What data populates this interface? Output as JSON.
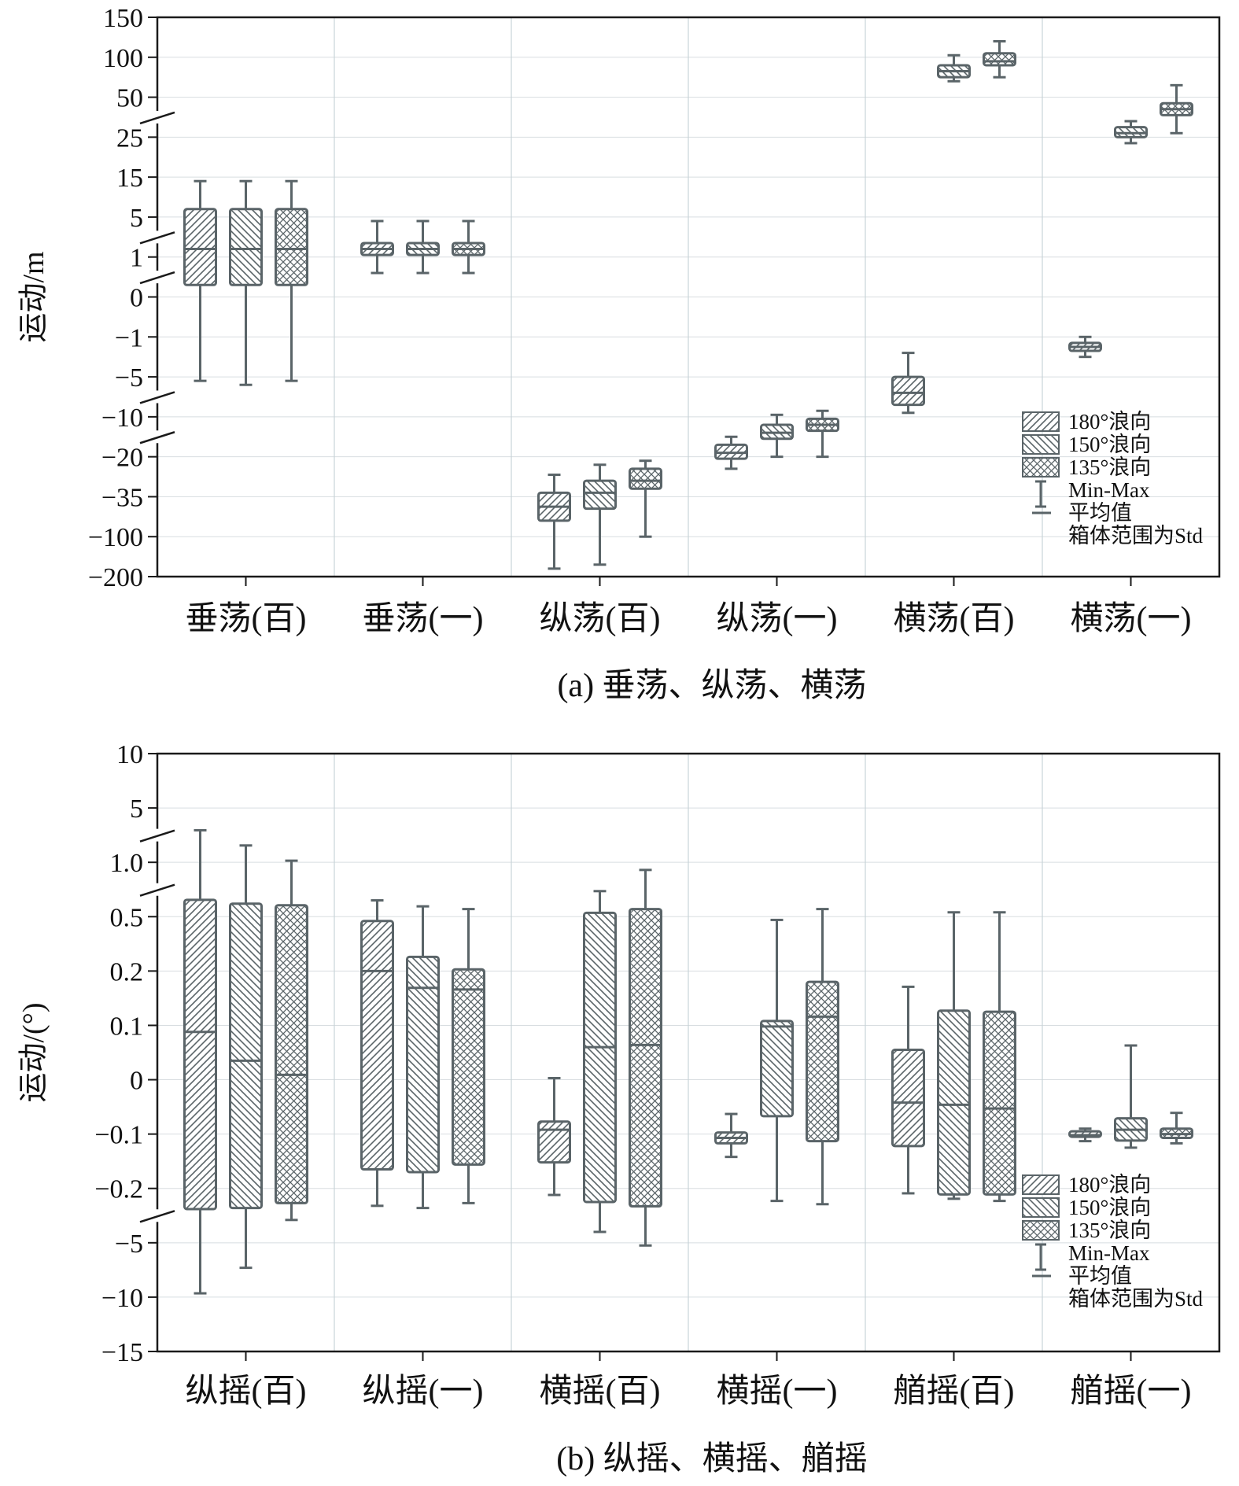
{
  "colors": {
    "axis": "#1a1a1a",
    "box": "#5a6468",
    "grid": "#d8dde0",
    "separator": "#c9d4d8"
  },
  "chart_data": [
    {
      "type": "box",
      "id": "a",
      "caption": "(a) 垂荡、纵荡、横荡",
      "ylabel": "运动/m",
      "yticks": [
        "150",
        "100",
        "50",
        "25",
        "15",
        "5",
        "1",
        "0",
        "-1",
        "-5",
        "-10",
        "-20",
        "-35",
        "-100",
        "-200"
      ],
      "axis_breaks_at": [
        "50/25",
        "5/1",
        "0/-1",
        "-10/-20",
        "-20/-35"
      ],
      "categories": [
        "垂荡(百)",
        "垂荡(一)",
        "纵荡(百)",
        "纵荡(一)",
        "横荡(百)",
        "横荡(一)"
      ],
      "series_names": [
        "180°浪向",
        "150°浪向",
        "135°浪向"
      ],
      "scale_note": "piecewise (broken) y-axis; values below are approximate readings in tick-index units (0 = -200 ... 14 = 150)",
      "boxes": [
        {
          "category": 0,
          "series": 0,
          "min": 4.9,
          "q1": 7.3,
          "mean": 8.2,
          "q3": 9.2,
          "max": 9.9
        },
        {
          "category": 0,
          "series": 1,
          "min": 4.8,
          "q1": 7.3,
          "mean": 8.2,
          "q3": 9.2,
          "max": 9.9
        },
        {
          "category": 0,
          "series": 2,
          "min": 4.9,
          "q1": 7.3,
          "mean": 8.2,
          "q3": 9.2,
          "max": 9.9
        },
        {
          "category": 1,
          "series": 0,
          "min": 7.6,
          "q1": 8.05,
          "mean": 8.2,
          "q3": 8.35,
          "max": 8.9
        },
        {
          "category": 1,
          "series": 1,
          "min": 7.6,
          "q1": 8.05,
          "mean": 8.2,
          "q3": 8.35,
          "max": 8.9
        },
        {
          "category": 1,
          "series": 2,
          "min": 7.6,
          "q1": 8.05,
          "mean": 8.2,
          "q3": 8.35,
          "max": 8.9
        },
        {
          "category": 2,
          "series": 0,
          "min": 0.2,
          "q1": 1.4,
          "mean": 1.75,
          "q3": 2.1,
          "max": 2.55
        },
        {
          "category": 2,
          "series": 1,
          "min": 0.3,
          "q1": 1.7,
          "mean": 2.1,
          "q3": 2.4,
          "max": 2.8
        },
        {
          "category": 2,
          "series": 2,
          "min": 1.0,
          "q1": 2.2,
          "mean": 2.4,
          "q3": 2.7,
          "max": 2.9
        },
        {
          "category": 3,
          "series": 0,
          "min": 2.7,
          "q1": 2.95,
          "mean": 3.1,
          "q3": 3.3,
          "max": 3.5
        },
        {
          "category": 3,
          "series": 1,
          "min": 3.0,
          "q1": 3.45,
          "mean": 3.6,
          "q3": 3.8,
          "max": 4.05
        },
        {
          "category": 3,
          "series": 2,
          "min": 3.0,
          "q1": 3.65,
          "mean": 3.8,
          "q3": 3.95,
          "max": 4.15
        },
        {
          "category": 4,
          "series": 0,
          "min": 4.1,
          "q1": 4.3,
          "mean": 4.6,
          "q3": 5.0,
          "max": 5.6
        },
        {
          "category": 4,
          "series": 1,
          "min": 12.4,
          "q1": 12.5,
          "mean": 12.65,
          "q3": 12.8,
          "max": 13.05
        },
        {
          "category": 4,
          "series": 2,
          "min": 12.5,
          "q1": 12.8,
          "mean": 12.9,
          "q3": 13.1,
          "max": 13.4
        },
        {
          "category": 5,
          "series": 0,
          "min": 5.5,
          "q1": 5.65,
          "mean": 5.75,
          "q3": 5.85,
          "max": 6.0
        },
        {
          "category": 5,
          "series": 1,
          "min": 10.85,
          "q1": 11.0,
          "mean": 11.1,
          "q3": 11.25,
          "max": 11.4
        },
        {
          "category": 5,
          "series": 2,
          "min": 11.1,
          "q1": 11.55,
          "mean": 11.7,
          "q3": 11.85,
          "max": 12.3
        }
      ],
      "legend": {
        "position": "bottom-right",
        "items": [
          "180°浪向",
          "150°浪向",
          "135°浪向"
        ],
        "minmax_label": "Min-Max",
        "mean_label": "平均值",
        "box_note": "箱体范围为Std"
      }
    },
    {
      "type": "box",
      "id": "b",
      "caption": "(b) 纵摇、横摇、艏摇",
      "ylabel": "运动/(°)",
      "yticks": [
        "10",
        "5",
        "1.0",
        "0.5",
        "0.2",
        "0.1",
        "0",
        "-0.1",
        "-0.2",
        "-5",
        "-10",
        "-15"
      ],
      "axis_breaks_at": [
        "1.0/0.5",
        "0.5/0.2",
        "-0.1/-0.2"
      ],
      "categories": [
        "纵摇(百)",
        "纵摇(一)",
        "横摇(百)",
        "横摇(一)",
        "艏摇(百)",
        "艏摇(一)"
      ],
      "series_names": [
        "180°浪向",
        "150°浪向",
        "135°浪向"
      ],
      "scale_note": "piecewise (broken) y-axis; values below are approximate readings in tick-index units (0 = -15 ... 11 = 10)",
      "boxes": [
        {
          "category": 0,
          "series": 0,
          "min": 1.07,
          "q1": 2.62,
          "mean": 5.88,
          "q3": 8.31,
          "max": 9.59
        },
        {
          "category": 0,
          "series": 1,
          "min": 1.54,
          "q1": 2.64,
          "mean": 5.35,
          "q3": 8.24,
          "max": 9.31
        },
        {
          "category": 0,
          "series": 2,
          "min": 2.42,
          "q1": 2.73,
          "mean": 5.09,
          "q3": 8.21,
          "max": 9.03
        },
        {
          "category": 1,
          "series": 0,
          "min": 2.68,
          "q1": 3.35,
          "mean": 7.0,
          "q3": 7.92,
          "max": 8.3
        },
        {
          "category": 1,
          "series": 1,
          "min": 2.64,
          "q1": 3.3,
          "mean": 6.69,
          "q3": 7.26,
          "max": 8.19
        },
        {
          "category": 1,
          "series": 2,
          "min": 2.73,
          "q1": 3.44,
          "mean": 6.66,
          "q3": 7.03,
          "max": 8.14
        },
        {
          "category": 2,
          "series": 0,
          "min": 2.88,
          "q1": 3.48,
          "mean": 4.08,
          "q3": 4.23,
          "max": 5.03
        },
        {
          "category": 2,
          "series": 1,
          "min": 2.2,
          "q1": 2.75,
          "mean": 5.6,
          "q3": 8.07,
          "max": 8.47
        },
        {
          "category": 2,
          "series": 2,
          "min": 1.95,
          "q1": 2.67,
          "mean": 5.64,
          "q3": 8.14,
          "max": 8.86
        },
        {
          "category": 3,
          "series": 0,
          "min": 3.58,
          "q1": 3.83,
          "mean": 3.93,
          "q3": 4.03,
          "max": 4.37
        },
        {
          "category": 3,
          "series": 1,
          "min": 2.77,
          "q1": 4.33,
          "mean": 5.98,
          "q3": 6.08,
          "max": 7.94
        },
        {
          "category": 3,
          "series": 2,
          "min": 2.71,
          "q1": 3.87,
          "mean": 6.16,
          "q3": 6.8,
          "max": 8.14
        },
        {
          "category": 4,
          "series": 0,
          "min": 2.91,
          "q1": 3.78,
          "mean": 4.58,
          "q3": 5.55,
          "max": 6.71
        },
        {
          "category": 4,
          "series": 1,
          "min": 2.81,
          "q1": 2.89,
          "mean": 4.54,
          "q3": 6.27,
          "max": 8.08
        },
        {
          "category": 4,
          "series": 2,
          "min": 2.77,
          "q1": 2.89,
          "mean": 4.47,
          "q3": 6.25,
          "max": 8.08
        },
        {
          "category": 5,
          "series": 0,
          "min": 3.87,
          "q1": 3.95,
          "mean": 3.98,
          "q3": 4.05,
          "max": 4.1
        },
        {
          "category": 5,
          "series": 1,
          "min": 3.75,
          "q1": 3.88,
          "mean": 4.08,
          "q3": 4.29,
          "max": 5.63
        },
        {
          "category": 5,
          "series": 2,
          "min": 3.83,
          "q1": 3.93,
          "mean": 4.0,
          "q3": 4.1,
          "max": 4.39
        }
      ],
      "legend": {
        "position": "bottom-right",
        "items": [
          "180°浪向",
          "150°浪向",
          "135°浪向"
        ],
        "minmax_label": "Min-Max",
        "mean_label": "平均值",
        "box_note": "箱体范围为Std"
      }
    }
  ]
}
